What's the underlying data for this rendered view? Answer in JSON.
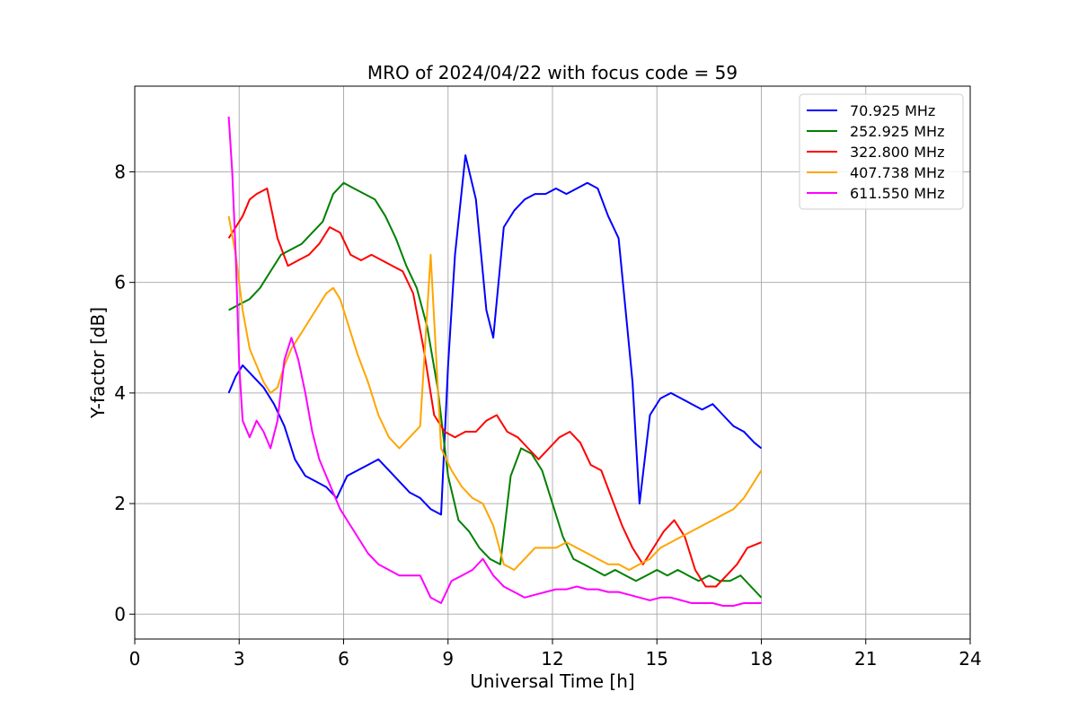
{
  "chart_data": {
    "type": "line",
    "title": "MRO of 2024/04/22 with focus code = 59",
    "xlabel": "Universal Time [h]",
    "ylabel": "Y-factor [dB]",
    "xlim": [
      0,
      24
    ],
    "ylim": [
      -0.45,
      9.55
    ],
    "xticks": [
      0,
      3,
      6,
      9,
      12,
      15,
      18,
      21,
      24
    ],
    "yticks": [
      0,
      2,
      4,
      6,
      8
    ],
    "grid": true,
    "legend_position": "top-right",
    "series": [
      {
        "name": "70.925 MHz",
        "color": "#0000ff",
        "x": [
          2.7,
          2.9,
          3.1,
          3.4,
          3.7,
          4.0,
          4.3,
          4.6,
          4.9,
          5.2,
          5.5,
          5.8,
          6.1,
          6.4,
          6.7,
          7.0,
          7.3,
          7.6,
          7.9,
          8.2,
          8.5,
          8.8,
          9.0,
          9.2,
          9.5,
          9.8,
          10.1,
          10.3,
          10.6,
          10.9,
          11.2,
          11.5,
          11.8,
          12.1,
          12.4,
          12.7,
          13.0,
          13.3,
          13.6,
          13.9,
          14.1,
          14.3,
          14.5,
          14.8,
          15.1,
          15.4,
          15.7,
          16.0,
          16.3,
          16.6,
          16.9,
          17.2,
          17.5,
          17.8,
          18.0
        ],
        "y": [
          4.0,
          4.3,
          4.5,
          4.3,
          4.1,
          3.8,
          3.4,
          2.8,
          2.5,
          2.4,
          2.3,
          2.1,
          2.5,
          2.6,
          2.7,
          2.8,
          2.6,
          2.4,
          2.2,
          2.1,
          1.9,
          1.8,
          4.5,
          6.5,
          8.3,
          7.5,
          5.5,
          5.0,
          7.0,
          7.3,
          7.5,
          7.6,
          7.6,
          7.7,
          7.6,
          7.7,
          7.8,
          7.7,
          7.2,
          6.8,
          5.5,
          4.2,
          2.0,
          3.6,
          3.9,
          4.0,
          3.9,
          3.8,
          3.7,
          3.8,
          3.6,
          3.4,
          3.3,
          3.1,
          3.0
        ]
      },
      {
        "name": "252.925 MHz",
        "color": "#008000",
        "x": [
          2.7,
          3.0,
          3.3,
          3.6,
          3.9,
          4.2,
          4.5,
          4.8,
          5.1,
          5.4,
          5.7,
          6.0,
          6.3,
          6.6,
          6.9,
          7.2,
          7.5,
          7.8,
          8.1,
          8.4,
          8.7,
          9.0,
          9.3,
          9.6,
          9.9,
          10.2,
          10.5,
          10.8,
          11.1,
          11.4,
          11.7,
          12.0,
          12.3,
          12.6,
          12.9,
          13.2,
          13.5,
          13.8,
          14.1,
          14.4,
          14.7,
          15.0,
          15.3,
          15.6,
          15.9,
          16.2,
          16.5,
          16.8,
          17.1,
          17.4,
          17.7,
          18.0
        ],
        "y": [
          5.5,
          5.6,
          5.7,
          5.9,
          6.2,
          6.5,
          6.6,
          6.7,
          6.9,
          7.1,
          7.6,
          7.8,
          7.7,
          7.6,
          7.5,
          7.2,
          6.8,
          6.3,
          5.9,
          5.2,
          4.1,
          2.5,
          1.7,
          1.5,
          1.2,
          1.0,
          0.9,
          2.5,
          3.0,
          2.9,
          2.6,
          2.0,
          1.4,
          1.0,
          0.9,
          0.8,
          0.7,
          0.8,
          0.7,
          0.6,
          0.7,
          0.8,
          0.7,
          0.8,
          0.7,
          0.6,
          0.7,
          0.6,
          0.6,
          0.7,
          0.5,
          0.3
        ]
      },
      {
        "name": "322.800 MHz",
        "color": "#ff0000",
        "x": [
          2.7,
          2.9,
          3.1,
          3.3,
          3.5,
          3.8,
          4.1,
          4.4,
          4.7,
          5.0,
          5.3,
          5.6,
          5.9,
          6.2,
          6.5,
          6.8,
          7.1,
          7.4,
          7.7,
          8.0,
          8.3,
          8.6,
          8.9,
          9.2,
          9.5,
          9.8,
          10.1,
          10.4,
          10.7,
          11.0,
          11.3,
          11.6,
          11.9,
          12.2,
          12.5,
          12.8,
          13.1,
          13.4,
          13.7,
          14.0,
          14.3,
          14.6,
          14.9,
          15.2,
          15.5,
          15.8,
          16.1,
          16.4,
          16.7,
          17.0,
          17.3,
          17.6,
          18.0
        ],
        "y": [
          6.8,
          7.0,
          7.2,
          7.5,
          7.6,
          7.7,
          6.8,
          6.3,
          6.4,
          6.5,
          6.7,
          7.0,
          6.9,
          6.5,
          6.4,
          6.5,
          6.4,
          6.3,
          6.2,
          5.8,
          4.8,
          3.6,
          3.3,
          3.2,
          3.3,
          3.3,
          3.5,
          3.6,
          3.3,
          3.2,
          3.0,
          2.8,
          3.0,
          3.2,
          3.3,
          3.1,
          2.7,
          2.6,
          2.1,
          1.6,
          1.2,
          0.9,
          1.2,
          1.5,
          1.7,
          1.4,
          0.8,
          0.5,
          0.5,
          0.7,
          0.9,
          1.2,
          1.3
        ]
      },
      {
        "name": "407.738 MHz",
        "color": "#ffa500",
        "x": [
          2.7,
          2.9,
          3.1,
          3.3,
          3.5,
          3.7,
          3.9,
          4.1,
          4.3,
          4.5,
          4.7,
          4.9,
          5.1,
          5.3,
          5.5,
          5.7,
          5.9,
          6.1,
          6.4,
          6.7,
          7.0,
          7.3,
          7.6,
          7.9,
          8.2,
          8.5,
          8.8,
          9.1,
          9.4,
          9.7,
          10.0,
          10.3,
          10.6,
          10.9,
          11.2,
          11.5,
          11.8,
          12.1,
          12.4,
          12.7,
          13.0,
          13.3,
          13.6,
          13.9,
          14.2,
          14.5,
          14.8,
          15.1,
          15.4,
          15.7,
          16.0,
          16.3,
          16.6,
          16.9,
          17.2,
          17.5,
          17.8,
          18.0
        ],
        "y": [
          7.2,
          6.5,
          5.5,
          4.8,
          4.5,
          4.2,
          4.0,
          4.1,
          4.5,
          4.8,
          5.0,
          5.2,
          5.4,
          5.6,
          5.8,
          5.9,
          5.7,
          5.3,
          4.7,
          4.2,
          3.6,
          3.2,
          3.0,
          3.2,
          3.4,
          6.5,
          3.0,
          2.6,
          2.3,
          2.1,
          2.0,
          1.6,
          0.9,
          0.8,
          1.0,
          1.2,
          1.2,
          1.2,
          1.3,
          1.2,
          1.1,
          1.0,
          0.9,
          0.9,
          0.8,
          0.9,
          1.0,
          1.2,
          1.3,
          1.4,
          1.5,
          1.6,
          1.7,
          1.8,
          1.9,
          2.1,
          2.4,
          2.6
        ]
      },
      {
        "name": "611.550 MHz",
        "color": "#ff00ff",
        "x": [
          2.7,
          2.8,
          2.9,
          3.0,
          3.1,
          3.3,
          3.5,
          3.7,
          3.9,
          4.1,
          4.3,
          4.5,
          4.7,
          4.9,
          5.1,
          5.3,
          5.5,
          5.7,
          5.9,
          6.1,
          6.4,
          6.7,
          7.0,
          7.3,
          7.6,
          7.9,
          8.2,
          8.5,
          8.8,
          9.1,
          9.4,
          9.7,
          10.0,
          10.3,
          10.6,
          10.9,
          11.2,
          11.5,
          11.8,
          12.1,
          12.4,
          12.7,
          13.0,
          13.3,
          13.6,
          13.9,
          14.2,
          14.5,
          14.8,
          15.1,
          15.4,
          15.7,
          16.0,
          16.3,
          16.6,
          16.9,
          17.2,
          17.5,
          17.8,
          18.0
        ],
        "y": [
          9.0,
          8.0,
          6.5,
          4.5,
          3.5,
          3.2,
          3.5,
          3.3,
          3.0,
          3.5,
          4.6,
          5.0,
          4.6,
          4.0,
          3.3,
          2.8,
          2.5,
          2.2,
          1.9,
          1.7,
          1.4,
          1.1,
          0.9,
          0.8,
          0.7,
          0.7,
          0.7,
          0.3,
          0.2,
          0.6,
          0.7,
          0.8,
          1.0,
          0.7,
          0.5,
          0.4,
          0.3,
          0.35,
          0.4,
          0.45,
          0.45,
          0.5,
          0.45,
          0.45,
          0.4,
          0.4,
          0.35,
          0.3,
          0.25,
          0.3,
          0.3,
          0.25,
          0.2,
          0.2,
          0.2,
          0.15,
          0.15,
          0.2,
          0.2,
          0.2
        ]
      }
    ]
  }
}
